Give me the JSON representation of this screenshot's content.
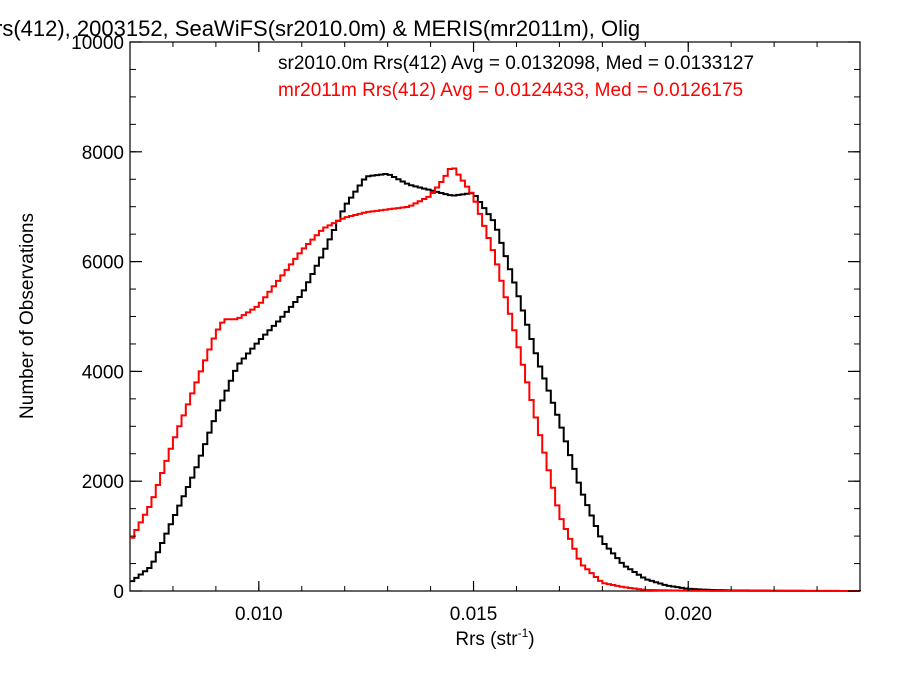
{
  "chart_data": {
    "type": "line",
    "title": "rs(412), 2003152, SeaWiFS(sr2010.0m) & MERIS(mr2011m), Olig",
    "xlabel_main": "Rrs (str",
    "xlabel_sup": "-1",
    "xlabel_close": ")",
    "ylabel": "Number of Observations",
    "xlim": [
      0.007,
      0.024
    ],
    "ylim": [
      0,
      10000
    ],
    "x_ticks": [
      0.01,
      0.015,
      0.02
    ],
    "x_tick_labels": [
      "0.010",
      "0.015",
      "0.020"
    ],
    "y_ticks": [
      0,
      2000,
      4000,
      6000,
      8000,
      10000
    ],
    "y_tick_labels": [
      "0",
      "2000",
      "4000",
      "6000",
      "8000",
      "10000"
    ],
    "grid": false,
    "legend_position": "top-right",
    "series": [
      {
        "name": "sr2010.0m",
        "legend": "sr2010.0m Rrs(412) Avg = 0.0132098, Med = 0.0133127",
        "color": "#000000",
        "x": [
          0.007,
          0.0075,
          0.008,
          0.0085,
          0.009,
          0.0095,
          0.01,
          0.0105,
          0.011,
          0.0115,
          0.012,
          0.0125,
          0.013,
          0.0135,
          0.014,
          0.0145,
          0.015,
          0.0155,
          0.016,
          0.0165,
          0.017,
          0.0175,
          0.018,
          0.0185,
          0.019,
          0.0195,
          0.02,
          0.0205,
          0.021,
          0.022,
          0.024
        ],
        "y": [
          150,
          450,
          1300,
          2150,
          3200,
          4100,
          4550,
          4950,
          5400,
          6150,
          7000,
          7550,
          7600,
          7400,
          7300,
          7200,
          7250,
          6700,
          5500,
          4200,
          3100,
          1850,
          900,
          470,
          220,
          100,
          40,
          20,
          10,
          5,
          0
        ]
      },
      {
        "name": "mr2011m",
        "legend": "mr2011m Rrs(412) Avg = 0.0124433, Med = 0.0126175",
        "color": "#ff0000",
        "x": [
          0.007,
          0.0075,
          0.008,
          0.0085,
          0.009,
          0.0092,
          0.0095,
          0.01,
          0.0105,
          0.011,
          0.0115,
          0.012,
          0.0125,
          0.013,
          0.0135,
          0.014,
          0.0143,
          0.0145,
          0.015,
          0.0155,
          0.016,
          0.0165,
          0.017,
          0.0175,
          0.018,
          0.0185,
          0.019,
          0.02,
          0.021,
          0.024
        ],
        "y": [
          900,
          1600,
          2700,
          3700,
          4700,
          4950,
          4950,
          5200,
          5700,
          6200,
          6600,
          6800,
          6900,
          6950,
          7000,
          7200,
          7500,
          7750,
          7200,
          6100,
          4600,
          3000,
          1400,
          500,
          150,
          70,
          20,
          5,
          2,
          0
        ]
      }
    ]
  }
}
